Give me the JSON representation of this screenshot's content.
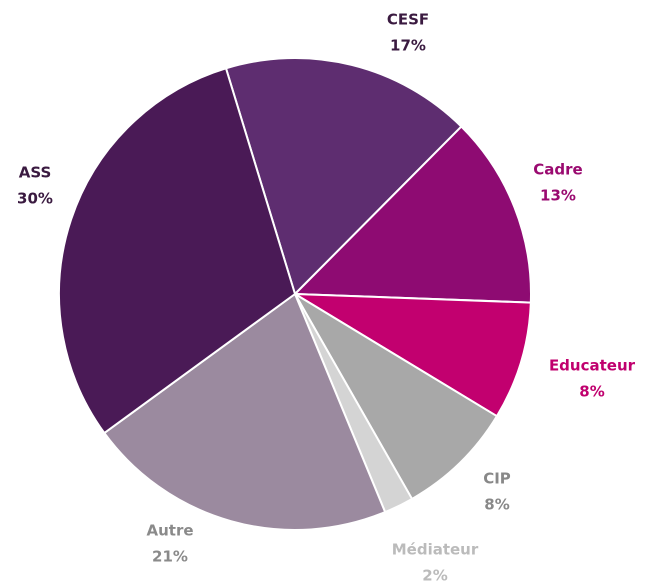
{
  "chart_data": {
    "type": "pie",
    "categories": [
      "CESF",
      "Cadre",
      "Educateur",
      "CIP",
      "Médiateur",
      "Autre",
      "ASS"
    ],
    "values": [
      17,
      13,
      8,
      8,
      2,
      21,
      30
    ],
    "value_labels": [
      "17%",
      "13%",
      "8%",
      "8%",
      "2%",
      "21%",
      "30%"
    ],
    "colors": [
      "#5e2d70",
      "#8e0b72",
      "#c2006f",
      "#a8a8a8",
      "#d4d4d4",
      "#9b8a9f",
      "#4a1a56"
    ],
    "label_colors": [
      "#3a1a40",
      "#9a0a70",
      "#c0006e",
      "#888888",
      "#bbbbbb",
      "#8a8a8a",
      "#3a1a40"
    ]
  }
}
